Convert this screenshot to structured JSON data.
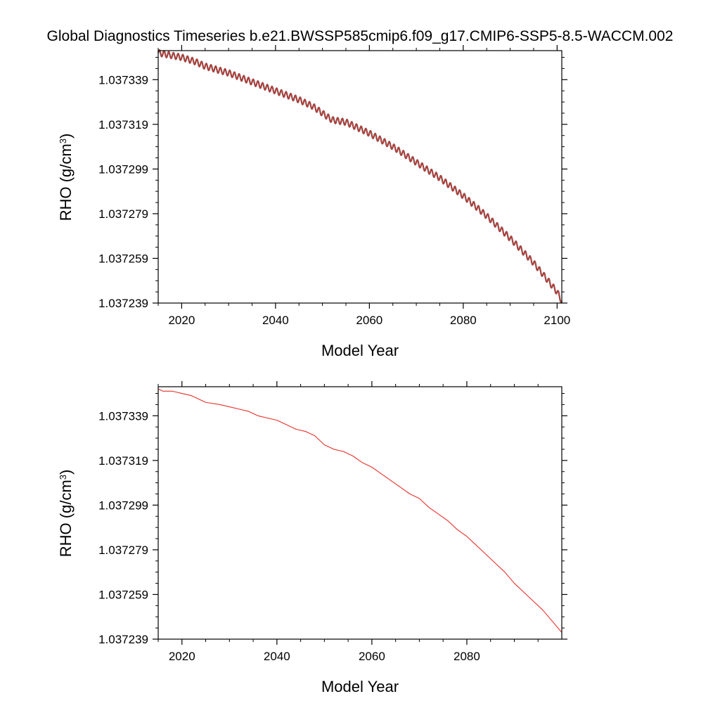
{
  "figure": {
    "title": "Global Diagnostics Timeseries b.e21.BWSSP585cmip6.f09_g17.CMIP6-SSP5-8.5-WACCM.002"
  },
  "chart_data": [
    {
      "type": "line",
      "title": "",
      "xlabel": "Model Year",
      "ylabel_main": "RHO (g/cm",
      "ylabel_sup": "3",
      "ylabel_close": ")",
      "xlim": [
        2015,
        2101
      ],
      "ylim": [
        1.037239,
        1.037352
      ],
      "x_ticks": [
        2020,
        2040,
        2060,
        2080,
        2100
      ],
      "x_tick_labels": [
        "2020",
        "2040",
        "2060",
        "2080",
        "2100"
      ],
      "y_ticks": [
        1.037339,
        1.037319,
        1.037299,
        1.037279,
        1.037259,
        1.037239
      ],
      "y_tick_labels": [
        "1.037339",
        "1.037319",
        "1.037299",
        "1.037279",
        "1.037259",
        "1.037239"
      ],
      "grid": false,
      "legend": "none",
      "series": [
        {
          "color": "#e8302a",
          "outline_color": "#555555",
          "seasonal_amplitude": 1.4e-06,
          "x": [
            2015,
            2020,
            2023,
            2025,
            2030,
            2035,
            2040,
            2045,
            2048,
            2050,
            2052,
            2055,
            2060,
            2065,
            2070,
            2075,
            2080,
            2085,
            2090,
            2095,
            2100,
            2101
          ],
          "y": [
            1.037351,
            1.037349,
            1.037347,
            1.037345,
            1.037342,
            1.037338,
            1.037334,
            1.03733,
            1.037327,
            1.037324,
            1.037321,
            1.03732,
            1.037315,
            1.037309,
            1.037302,
            1.037295,
            1.037287,
            1.037278,
            1.037268,
            1.037257,
            1.037244,
            1.03724
          ]
        }
      ]
    },
    {
      "type": "line",
      "title": "",
      "xlabel": "Model Year",
      "ylabel_main": "RHO (g/cm",
      "ylabel_sup": "3",
      "ylabel_close": ")",
      "xlim": [
        2015,
        2100
      ],
      "ylim": [
        1.037239,
        1.037352
      ],
      "x_ticks": [
        2020,
        2040,
        2060,
        2080
      ],
      "x_tick_labels": [
        "2020",
        "2040",
        "2060",
        "2080"
      ],
      "y_ticks": [
        1.037339,
        1.037319,
        1.037299,
        1.037279,
        1.037259,
        1.037239
      ],
      "y_tick_labels": [
        "1.037339",
        "1.037319",
        "1.037299",
        "1.037279",
        "1.037259",
        "1.037239"
      ],
      "grid": false,
      "legend": "none",
      "series": [
        {
          "color": "#e8302a",
          "x": [
            2015,
            2016,
            2018,
            2020,
            2022,
            2023,
            2025,
            2028,
            2030,
            2032,
            2034,
            2036,
            2038,
            2040,
            2042,
            2044,
            2046,
            2048,
            2049,
            2050,
            2051,
            2052,
            2054,
            2056,
            2058,
            2060,
            2062,
            2064,
            2066,
            2068,
            2070,
            2072,
            2074,
            2076,
            2078,
            2080,
            2082,
            2084,
            2086,
            2088,
            2090,
            2092,
            2094,
            2096,
            2098,
            2100
          ],
          "y": [
            1.037351,
            1.03735,
            1.03735,
            1.037349,
            1.037348,
            1.037347,
            1.037345,
            1.037344,
            1.037343,
            1.037342,
            1.037341,
            1.037339,
            1.037338,
            1.037337,
            1.037335,
            1.037333,
            1.037332,
            1.03733,
            1.037328,
            1.037326,
            1.037325,
            1.037324,
            1.037323,
            1.037321,
            1.037318,
            1.037316,
            1.037313,
            1.03731,
            1.037307,
            1.037304,
            1.037302,
            1.037298,
            1.037295,
            1.037292,
            1.037288,
            1.037285,
            1.037281,
            1.037277,
            1.037273,
            1.037269,
            1.037264,
            1.03726,
            1.037256,
            1.037252,
            1.037247,
            1.037242
          ]
        }
      ]
    }
  ]
}
